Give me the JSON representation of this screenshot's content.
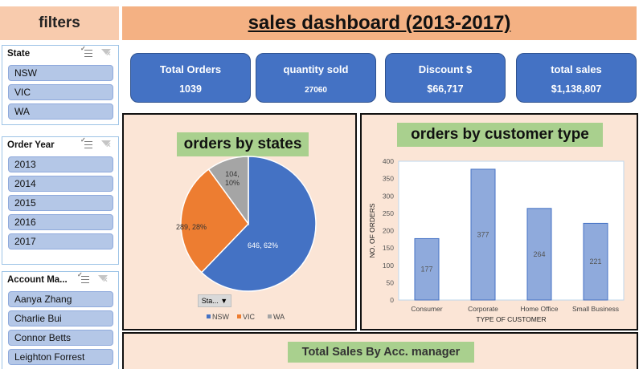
{
  "filters_title": "filters",
  "dashboard_title": "sales dashboard (2013-2017)",
  "slicers": {
    "state": {
      "title": "State",
      "items": [
        "NSW",
        "VIC",
        "WA"
      ]
    },
    "order_year": {
      "title": "Order Year",
      "items": [
        "2013",
        "2014",
        "2015",
        "2016",
        "2017"
      ]
    },
    "account_manager": {
      "title": "Account Ma...",
      "items": [
        "Aanya Zhang",
        "Charlie Bui",
        "Connor Betts",
        "Leighton Forrest"
      ]
    }
  },
  "kpis": [
    {
      "label": "Total Orders",
      "value": "1039"
    },
    {
      "label": "quantity sold",
      "value": "27060"
    },
    {
      "label": "Discount $",
      "value": "$66,717"
    },
    {
      "label": "total sales",
      "value": "$1,138,807"
    }
  ],
  "pie_panel": {
    "title": "orders by states",
    "field_button": "Sta... ▼"
  },
  "bar_panel": {
    "title": "orders by customer type"
  },
  "bottom_panel": {
    "title": "Total Sales By Acc. manager"
  },
  "colors": {
    "nsw": "#4472c4",
    "vic": "#ed7d31",
    "wa": "#a5a5a5",
    "bar": "#8faadc"
  },
  "chart_data": [
    {
      "type": "pie",
      "title": "orders by states",
      "categories": [
        "NSW",
        "VIC",
        "WA"
      ],
      "values": [
        646,
        289,
        104
      ],
      "data_labels": [
        "646, 62%",
        "289, 28%",
        "104, 10%"
      ],
      "legend": "bottom"
    },
    {
      "type": "bar",
      "title": "orders by customer type",
      "categories": [
        "Consumer",
        "Corporate",
        "Home Office",
        "Small Business"
      ],
      "values": [
        177,
        377,
        264,
        221
      ],
      "xlabel": "TYPE OF CUSTOMER",
      "ylabel": "NO. OF ORDERS",
      "ylim": [
        0,
        400
      ],
      "yticks": [
        0,
        50,
        100,
        150,
        200,
        250,
        300,
        350,
        400
      ],
      "grid": false
    }
  ]
}
